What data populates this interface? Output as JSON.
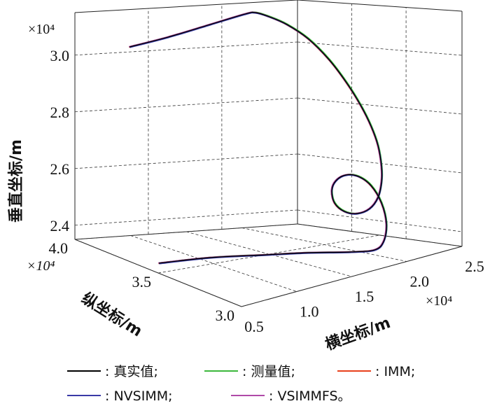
{
  "chart_data": {
    "type": "line",
    "projection": "3d",
    "grid": true,
    "x_axis": {
      "label": "横坐标/m",
      "multiplier": "×10⁴",
      "ticks": [
        "0.5",
        "1.0",
        "1.5",
        "2.0",
        "2.5"
      ],
      "range": [
        0.5,
        2.5
      ]
    },
    "y_axis": {
      "label": "纵坐标/m",
      "multiplier": "×10⁴",
      "ticks": [
        "3.0",
        "3.5",
        "4.0"
      ],
      "range": [
        3.0,
        4.0
      ]
    },
    "z_axis": {
      "label": "垂直坐标/m",
      "multiplier": "×10⁴",
      "ticks": [
        "2.4",
        "2.6",
        "2.8",
        "3.0"
      ],
      "range": [
        2.35,
        3.15
      ]
    },
    "legend_position": "bottom",
    "legend": [
      {
        "label": ": 真实值;",
        "color": "#000000"
      },
      {
        "label": ": 测量值;",
        "color": "#3cb83c"
      },
      {
        "label": ": IMM;",
        "color": "#e8401c"
      },
      {
        "label": ": NVSIMM;",
        "color": "#3a3aa6"
      },
      {
        "label": ": VSIMMFS。",
        "color": "#b04aa8"
      }
    ],
    "trajectory_screen": [
      [
        227,
        376
      ],
      [
        300,
        368
      ],
      [
        380,
        364
      ],
      [
        440,
        361
      ],
      [
        500,
        360
      ],
      [
        535,
        357
      ],
      [
        548,
        345
      ],
      [
        552,
        320
      ],
      [
        545,
        290
      ],
      [
        530,
        265
      ],
      [
        512,
        252
      ],
      [
        494,
        250
      ],
      [
        480,
        258
      ],
      [
        474,
        272
      ],
      [
        478,
        290
      ],
      [
        492,
        302
      ],
      [
        510,
        305
      ],
      [
        528,
        298
      ],
      [
        540,
        282
      ],
      [
        545,
        260
      ],
      [
        545,
        238
      ],
      [
        540,
        208
      ],
      [
        530,
        180
      ],
      [
        515,
        150
      ],
      [
        495,
        118
      ],
      [
        470,
        85
      ],
      [
        440,
        55
      ],
      [
        410,
        35
      ],
      [
        385,
        24
      ],
      [
        365,
        18
      ],
      [
        350,
        20
      ],
      [
        300,
        35
      ],
      [
        240,
        53
      ],
      [
        185,
        67
      ]
    ]
  }
}
